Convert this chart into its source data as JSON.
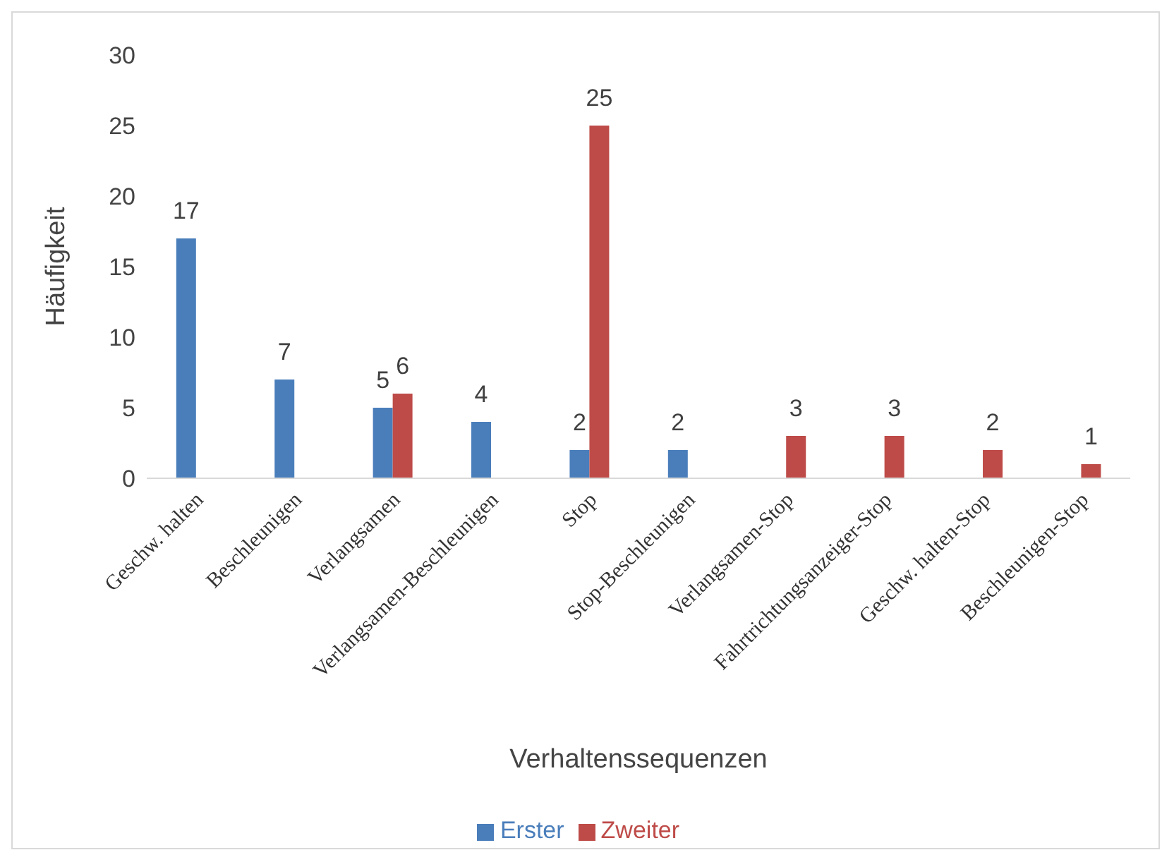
{
  "chart_data": {
    "type": "bar",
    "xlabel": "Verhaltenssequenzen",
    "ylabel": "Häufigkeit",
    "categories": [
      "Geschw. halten",
      "Beschleunigen",
      "Verlangsamen",
      "Verlangsamen-Beschleunigen",
      "Stop",
      "Stop-Beschleunigen",
      "Verlangsamen-Stop",
      "Fahrtrichtungsanzeiger-Stop",
      "Geschw. halten-Stop",
      "Beschleunigen-Stop"
    ],
    "series": [
      {
        "name": "Erster",
        "color": "#4a7ebb",
        "values": [
          17,
          7,
          5,
          4,
          2,
          2,
          null,
          null,
          null,
          null
        ]
      },
      {
        "name": "Zweiter",
        "color": "#be4b48",
        "values": [
          null,
          null,
          6,
          null,
          25,
          null,
          3,
          3,
          2,
          1
        ]
      }
    ],
    "ylim": [
      0,
      30
    ],
    "yticks": [
      0,
      5,
      10,
      15,
      20,
      25,
      30
    ],
    "data_labels": true,
    "legend": "bottom"
  }
}
